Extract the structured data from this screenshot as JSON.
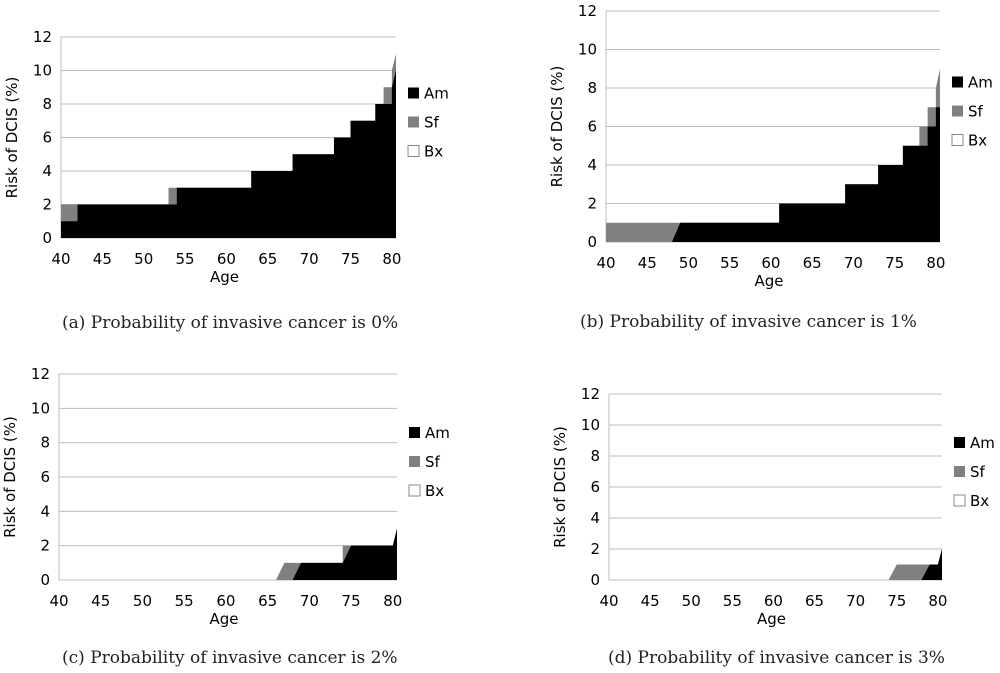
{
  "chart_data": [
    {
      "type": "area",
      "caption": "(a) Probability of invasive cancer is 0%",
      "xlabel": "Age",
      "ylabel": "Risk of DCIS (%)",
      "xlim": [
        40,
        80.5
      ],
      "ylim": [
        0,
        12
      ],
      "xticks": [
        "40",
        "45",
        "50",
        "55",
        "60",
        "65",
        "70",
        "75",
        "80"
      ],
      "yticks": [
        "0",
        "2",
        "4",
        "6",
        "8",
        "10",
        "12"
      ],
      "grid": "horizontal",
      "legend_position": "right",
      "legend": [
        "Am",
        "Sf",
        "Bx"
      ],
      "colors": {
        "Am": "#000000",
        "Sf": "#808080",
        "Bx": "#ffffff"
      },
      "series": [
        {
          "name": "Sf",
          "points": [
            [
              40,
              2
            ],
            [
              43,
              2
            ],
            [
              43,
              2
            ],
            [
              53,
              2
            ],
            [
              53,
              3
            ],
            [
              55,
              3
            ],
            [
              55,
              3
            ],
            [
              63,
              3
            ],
            [
              63,
              4
            ],
            [
              64,
              4
            ],
            [
              64,
              4
            ],
            [
              68,
              4
            ],
            [
              68,
              5
            ],
            [
              73,
              5
            ],
            [
              73,
              6
            ],
            [
              75,
              6
            ],
            [
              75,
              7
            ],
            [
              77,
              7
            ],
            [
              77,
              7
            ],
            [
              78,
              7
            ],
            [
              78,
              8
            ],
            [
              79,
              8
            ],
            [
              79,
              9
            ],
            [
              80,
              9
            ],
            [
              80,
              10
            ],
            [
              80.5,
              11
            ]
          ]
        },
        {
          "name": "Am",
          "points": [
            [
              40,
              1
            ],
            [
              41,
              1
            ],
            [
              41,
              1
            ],
            [
              42,
              1
            ],
            [
              42,
              2
            ],
            [
              51,
              2
            ],
            [
              51,
              2
            ],
            [
              54,
              2
            ],
            [
              54,
              3
            ],
            [
              62,
              3
            ],
            [
              62,
              3
            ],
            [
              63,
              3
            ],
            [
              63,
              4
            ],
            [
              68,
              4
            ],
            [
              68,
              5
            ],
            [
              73,
              5
            ],
            [
              73,
              6
            ],
            [
              75,
              6
            ],
            [
              75,
              7
            ],
            [
              77,
              7
            ],
            [
              77,
              7
            ],
            [
              78,
              7
            ],
            [
              78,
              8
            ],
            [
              79,
              8
            ],
            [
              79,
              8
            ],
            [
              80,
              8
            ],
            [
              80,
              9
            ],
            [
              80.5,
              10
            ]
          ]
        }
      ]
    },
    {
      "type": "area",
      "caption": "(b) Probability of invasive cancer is 1%",
      "xlabel": "Age",
      "ylabel": "Risk of DCIS (%)",
      "xlim": [
        40,
        80.5
      ],
      "ylim": [
        0,
        12
      ],
      "xticks": [
        "40",
        "45",
        "50",
        "55",
        "60",
        "65",
        "70",
        "75",
        "80"
      ],
      "yticks": [
        "0",
        "2",
        "4",
        "6",
        "8",
        "10",
        "12"
      ],
      "grid": "horizontal",
      "legend_position": "right",
      "legend": [
        "Am",
        "Sf",
        "Bx"
      ],
      "colors": {
        "Am": "#000000",
        "Sf": "#808080",
        "Bx": "#ffffff"
      },
      "series": [
        {
          "name": "Sf",
          "points": [
            [
              40,
              1
            ],
            [
              61,
              1
            ],
            [
              61,
              2
            ],
            [
              69,
              2
            ],
            [
              69,
              3
            ],
            [
              73,
              3
            ],
            [
              73,
              4
            ],
            [
              76,
              4
            ],
            [
              76,
              5
            ],
            [
              78,
              5
            ],
            [
              78,
              6
            ],
            [
              79,
              6
            ],
            [
              79,
              7
            ],
            [
              80,
              7
            ],
            [
              80,
              8
            ],
            [
              80.5,
              9
            ]
          ]
        },
        {
          "name": "Am",
          "points": [
            [
              40,
              0
            ],
            [
              48,
              0
            ],
            [
              49,
              1
            ],
            [
              61,
              1
            ],
            [
              61,
              2
            ],
            [
              69,
              2
            ],
            [
              69,
              3
            ],
            [
              73,
              3
            ],
            [
              73,
              4
            ],
            [
              76,
              4
            ],
            [
              76,
              5
            ],
            [
              78,
              5
            ],
            [
              78,
              5
            ],
            [
              79,
              5
            ],
            [
              79,
              6
            ],
            [
              80,
              6
            ],
            [
              80,
              7
            ],
            [
              80.5,
              7
            ]
          ]
        }
      ]
    },
    {
      "type": "area",
      "caption": "(c) Probability of invasive cancer is 2%",
      "xlabel": "Age",
      "ylabel": "Risk of DCIS (%)",
      "xlim": [
        40,
        80.5
      ],
      "ylim": [
        0,
        12
      ],
      "xticks": [
        "40",
        "45",
        "50",
        "55",
        "60",
        "65",
        "70",
        "75",
        "80"
      ],
      "yticks": [
        "0",
        "2",
        "4",
        "6",
        "8",
        "10",
        "12"
      ],
      "grid": "horizontal",
      "legend_position": "right",
      "legend": [
        "Am",
        "Sf",
        "Bx"
      ],
      "colors": {
        "Am": "#000000",
        "Sf": "#808080",
        "Bx": "#ffffff"
      },
      "series": [
        {
          "name": "Sf",
          "points": [
            [
              40,
              0
            ],
            [
              66,
              0
            ],
            [
              67,
              1
            ],
            [
              74,
              1
            ],
            [
              74,
              2
            ],
            [
              80,
              2
            ],
            [
              80,
              2
            ],
            [
              80.5,
              3
            ]
          ]
        },
        {
          "name": "Am",
          "points": [
            [
              40,
              0
            ],
            [
              68,
              0
            ],
            [
              69,
              1
            ],
            [
              74,
              1
            ],
            [
              75,
              2
            ],
            [
              80,
              2
            ],
            [
              80,
              2
            ],
            [
              80.5,
              3
            ]
          ]
        }
      ]
    },
    {
      "type": "area",
      "caption": "(d) Probability of invasive cancer is 3%",
      "xlabel": "Age",
      "ylabel": "Risk of DCIS (%)",
      "xlim": [
        40,
        80.5
      ],
      "ylim": [
        0,
        12
      ],
      "xticks": [
        "40",
        "45",
        "50",
        "55",
        "60",
        "65",
        "70",
        "75",
        "80"
      ],
      "yticks": [
        "0",
        "2",
        "4",
        "6",
        "8",
        "10",
        "12"
      ],
      "grid": "horizontal",
      "legend_position": "right",
      "legend": [
        "Am",
        "Sf",
        "Bx"
      ],
      "colors": {
        "Am": "#000000",
        "Sf": "#808080",
        "Bx": "#ffffff"
      },
      "series": [
        {
          "name": "Sf",
          "points": [
            [
              40,
              0
            ],
            [
              74,
              0
            ],
            [
              75,
              1
            ],
            [
              80,
              1
            ],
            [
              80.5,
              2
            ]
          ]
        },
        {
          "name": "Am",
          "points": [
            [
              40,
              0
            ],
            [
              78,
              0
            ],
            [
              79,
              1
            ],
            [
              80,
              1
            ],
            [
              80.5,
              2
            ]
          ]
        }
      ]
    }
  ]
}
